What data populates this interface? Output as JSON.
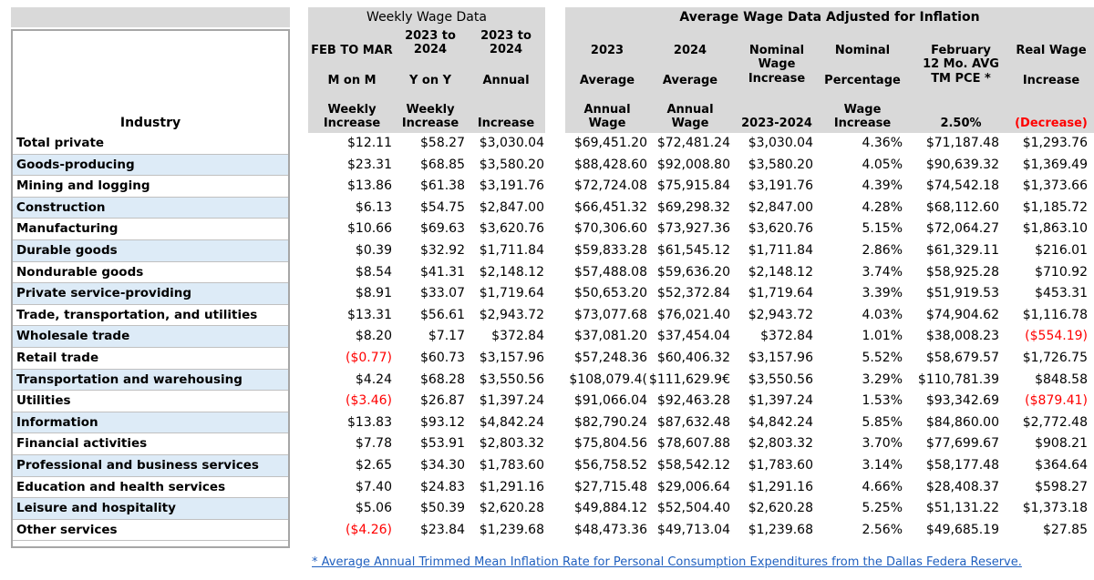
{
  "groups": {
    "weekly": "Weekly Wage Data",
    "inflation": "Average Wage Data Adjusted for Inflation"
  },
  "headers": {
    "industry": "Industry",
    "c1": [
      "FEB TO MAR",
      "M on M",
      "Weekly",
      "Increase"
    ],
    "c2": [
      "2023 to",
      "2024",
      "Y on Y",
      "Weekly",
      "Increase"
    ],
    "c3": [
      "2023 to",
      "2024",
      "Annual",
      "Increase"
    ],
    "c4": [
      "2023",
      "Average",
      "Annual",
      "Wage"
    ],
    "c5": [
      "2024",
      "Average",
      "Annual",
      "Wage"
    ],
    "c6": [
      "Nominal",
      "Wage",
      "Increase",
      "2023-2024"
    ],
    "c7": [
      "Nominal",
      "Percentage",
      "Wage",
      "Increase"
    ],
    "c8": [
      "February",
      "12 Mo. AVG",
      "TM PCE *",
      "2.50%"
    ],
    "c9": [
      "Real Wage",
      "Increase",
      "(Decrease)"
    ]
  },
  "rows": [
    {
      "industry": "Total private",
      "c1": "$12.11",
      "c2": "$58.27",
      "c3": "$3,030.04",
      "c4": "$69,451.20",
      "c5": "$72,481.24",
      "c6": "$3,030.04",
      "c7": "4.36%",
      "c8": "$71,187.48",
      "c9": "$1,293.76"
    },
    {
      "industry": "Goods-producing",
      "c1": "$23.31",
      "c2": "$68.85",
      "c3": "$3,580.20",
      "c4": "$88,428.60",
      "c5": "$92,008.80",
      "c6": "$3,580.20",
      "c7": "4.05%",
      "c8": "$90,639.32",
      "c9": "$1,369.49"
    },
    {
      "industry": "Mining and logging",
      "c1": "$13.86",
      "c2": "$61.38",
      "c3": "$3,191.76",
      "c4": "$72,724.08",
      "c5": "$75,915.84",
      "c6": "$3,191.76",
      "c7": "4.39%",
      "c8": "$74,542.18",
      "c9": "$1,373.66"
    },
    {
      "industry": "Construction",
      "c1": "$6.13",
      "c2": "$54.75",
      "c3": "$2,847.00",
      "c4": "$66,451.32",
      "c5": "$69,298.32",
      "c6": "$2,847.00",
      "c7": "4.28%",
      "c8": "$68,112.60",
      "c9": "$1,185.72"
    },
    {
      "industry": "Manufacturing",
      "c1": "$10.66",
      "c2": "$69.63",
      "c3": "$3,620.76",
      "c4": "$70,306.60",
      "c5": "$73,927.36",
      "c6": "$3,620.76",
      "c7": "5.15%",
      "c8": "$72,064.27",
      "c9": "$1,863.10"
    },
    {
      "industry": "Durable goods",
      "c1": "$0.39",
      "c2": "$32.92",
      "c3": "$1,711.84",
      "c4": "$59,833.28",
      "c5": "$61,545.12",
      "c6": "$1,711.84",
      "c7": "2.86%",
      "c8": "$61,329.11",
      "c9": "$216.01"
    },
    {
      "industry": "Nondurable goods",
      "c1": "$8.54",
      "c2": "$41.31",
      "c3": "$2,148.12",
      "c4": "$57,488.08",
      "c5": "$59,636.20",
      "c6": "$2,148.12",
      "c7": "3.74%",
      "c8": "$58,925.28",
      "c9": "$710.92"
    },
    {
      "industry": "Private service-providing",
      "c1": "$8.91",
      "c2": "$33.07",
      "c3": "$1,719.64",
      "c4": "$50,653.20",
      "c5": "$52,372.84",
      "c6": "$1,719.64",
      "c7": "3.39%",
      "c8": "$51,919.53",
      "c9": "$453.31"
    },
    {
      "industry": "Trade, transportation, and utilities",
      "c1": "$13.31",
      "c2": "$56.61",
      "c3": "$2,943.72",
      "c4": "$73,077.68",
      "c5": "$76,021.40",
      "c6": "$2,943.72",
      "c7": "4.03%",
      "c8": "$74,904.62",
      "c9": "$1,116.78"
    },
    {
      "industry": "Wholesale trade",
      "c1": "$8.20",
      "c2": "$7.17",
      "c3": "$372.84",
      "c4": "$37,081.20",
      "c5": "$37,454.04",
      "c6": "$372.84",
      "c7": "1.01%",
      "c8": "$38,008.23",
      "c9": "($554.19)"
    },
    {
      "industry": "Retail trade",
      "c1": "($0.77)",
      "c2": "$60.73",
      "c3": "$3,157.96",
      "c4": "$57,248.36",
      "c5": "$60,406.32",
      "c6": "$3,157.96",
      "c7": "5.52%",
      "c8": "$58,679.57",
      "c9": "$1,726.75"
    },
    {
      "industry": "Transportation and warehousing",
      "c1": "$4.24",
      "c2": "$68.28",
      "c3": "$3,550.56",
      "c4": "$108,079.4(",
      "c5": "$111,629.9€",
      "c6": "$3,550.56",
      "c7": "3.29%",
      "c8": "$110,781.39",
      "c9": "$848.58"
    },
    {
      "industry": "Utilities",
      "c1": "($3.46)",
      "c2": "$26.87",
      "c3": "$1,397.24",
      "c4": "$91,066.04",
      "c5": "$92,463.28",
      "c6": "$1,397.24",
      "c7": "1.53%",
      "c8": "$93,342.69",
      "c9": "($879.41)"
    },
    {
      "industry": "Information",
      "c1": "$13.83",
      "c2": "$93.12",
      "c3": "$4,842.24",
      "c4": "$82,790.24",
      "c5": "$87,632.48",
      "c6": "$4,842.24",
      "c7": "5.85%",
      "c8": "$84,860.00",
      "c9": "$2,772.48"
    },
    {
      "industry": "Financial activities",
      "c1": "$7.78",
      "c2": "$53.91",
      "c3": "$2,803.32",
      "c4": "$75,804.56",
      "c5": "$78,607.88",
      "c6": "$2,803.32",
      "c7": "3.70%",
      "c8": "$77,699.67",
      "c9": "$908.21"
    },
    {
      "industry": "Professional and business services",
      "c1": "$2.65",
      "c2": "$34.30",
      "c3": "$1,783.60",
      "c4": "$56,758.52",
      "c5": "$58,542.12",
      "c6": "$1,783.60",
      "c7": "3.14%",
      "c8": "$58,177.48",
      "c9": "$364.64"
    },
    {
      "industry": "Education and health services",
      "c1": "$7.40",
      "c2": "$24.83",
      "c3": "$1,291.16",
      "c4": "$27,715.48",
      "c5": "$29,006.64",
      "c6": "$1,291.16",
      "c7": "4.66%",
      "c8": "$28,408.37",
      "c9": "$598.27"
    },
    {
      "industry": "Leisure and hospitality",
      "c1": "$5.06",
      "c2": "$50.39",
      "c3": "$2,620.28",
      "c4": "$49,884.12",
      "c5": "$52,504.40",
      "c6": "$2,620.28",
      "c7": "5.25%",
      "c8": "$51,131.22",
      "c9": "$1,373.18"
    },
    {
      "industry": "Other services",
      "c1": "($4.26)",
      "c2": "$23.84",
      "c3": "$1,239.68",
      "c4": "$48,473.36",
      "c5": "$49,713.04",
      "c6": "$1,239.68",
      "c7": "2.56%",
      "c8": "$49,685.19",
      "c9": "$27.85"
    }
  ],
  "footnote": "* Average Annual Trimmed Mean Inflation Rate for Personal Consumption Expenditures from the Dallas Federa Reserve.",
  "colors": {
    "header_bg": "#d9d9d9",
    "row_band": "#ddebf7",
    "negative": "#ff0000",
    "footnote_link": "#1f5fbf"
  }
}
